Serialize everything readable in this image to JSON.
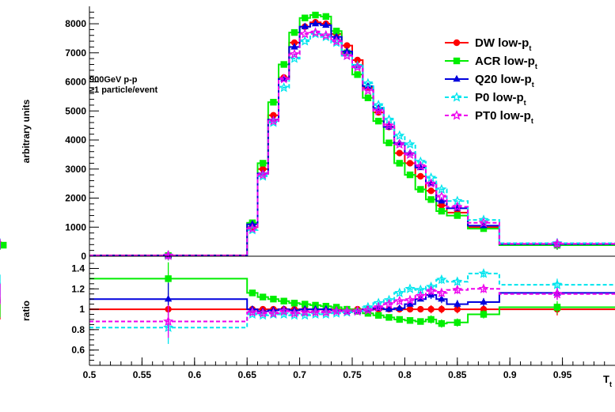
{
  "chart_data": {
    "type": "line",
    "upper": {
      "ylabel": "arbitrary units",
      "ylim": [
        0,
        8600
      ],
      "yticks": [
        0,
        1000,
        2000,
        3000,
        4000,
        5000,
        6000,
        7000,
        8000
      ],
      "annotation": [
        "900GeV p-p",
        "≥1 particle/event"
      ],
      "bin_edges": [
        0.5,
        0.65,
        0.66,
        0.67,
        0.68,
        0.69,
        0.7,
        0.71,
        0.72,
        0.73,
        0.74,
        0.75,
        0.76,
        0.77,
        0.78,
        0.79,
        0.8,
        0.81,
        0.82,
        0.83,
        0.84,
        0.86,
        0.89,
        1.0
      ],
      "series": [
        {
          "name": "DW low-p",
          "sub": "t",
          "color": "#ff0000",
          "marker": "circle",
          "dash": "",
          "values": [
            30,
            1000,
            3000,
            4850,
            6150,
            7350,
            7900,
            8050,
            8000,
            7650,
            7250,
            6750,
            5800,
            4950,
            4450,
            3550,
            3200,
            2750,
            2250,
            1750,
            1500,
            1000,
            400,
            400
          ]
        },
        {
          "name": "ACR low-p",
          "sub": "t",
          "color": "#00ee00",
          "marker": "square",
          "dash": "",
          "values": [
            20,
            1150,
            3200,
            5300,
            6600,
            7700,
            8200,
            8300,
            8250,
            7750,
            7000,
            6250,
            5450,
            4650,
            3900,
            3200,
            2800,
            2300,
            1950,
            1550,
            1400,
            950,
            380,
            380
          ]
        },
        {
          "name": "Q20 low-p",
          "sub": "t",
          "color": "#0000dd",
          "marker": "triangle",
          "dash": "",
          "values": [
            25,
            1100,
            2850,
            4700,
            6100,
            7200,
            7900,
            8000,
            7950,
            7550,
            7050,
            6550,
            5850,
            5100,
            4450,
            3900,
            3550,
            3050,
            2500,
            1900,
            1650,
            1050,
            420,
            420
          ]
        },
        {
          "name": "P0 low-p",
          "sub": "t",
          "color": "#00e5ee",
          "marker": "openstar",
          "dash": "5,3",
          "values": [
            25,
            900,
            2750,
            4600,
            5800,
            6800,
            7400,
            7650,
            7550,
            7350,
            6900,
            6550,
            5950,
            5200,
            4700,
            4150,
            3850,
            3250,
            2700,
            2300,
            1900,
            1250,
            450,
            450
          ]
        },
        {
          "name": "PT0 low-p",
          "sub": "t",
          "color": "#ee00ee",
          "marker": "openstar",
          "dash": "5,3",
          "values": [
            25,
            950,
            2800,
            4650,
            6100,
            6950,
            7650,
            7700,
            7600,
            7400,
            6900,
            6500,
            5700,
            5000,
            4500,
            3850,
            3500,
            3100,
            2500,
            2050,
            1700,
            1150,
            430,
            430
          ]
        }
      ]
    },
    "ratio": {
      "ylabel": "ratio",
      "xlabel": "T",
      "xlabel_sub": "t",
      "xlim": [
        0.5,
        1.0
      ],
      "xticks": [
        0.5,
        0.55,
        0.6,
        0.65,
        0.7,
        0.75,
        0.8,
        0.85,
        0.9,
        0.95
      ],
      "ylim": [
        0.45,
        1.52
      ],
      "yticks": [
        0.6,
        0.8,
        1,
        1.2,
        1.4
      ],
      "series": [
        {
          "name": "DW low-p",
          "values": [
            1,
            1,
            1,
            1,
            1,
            1,
            1,
            1,
            1,
            1,
            1,
            1,
            1,
            1,
            1,
            1,
            1,
            1,
            1,
            1,
            1,
            1,
            1,
            1
          ]
        },
        {
          "name": "ACR low-p",
          "values": [
            1.3,
            1.16,
            1.12,
            1.1,
            1.08,
            1.06,
            1.05,
            1.04,
            1.03,
            1.02,
            1.0,
            0.98,
            0.96,
            0.94,
            0.92,
            0.9,
            0.89,
            0.88,
            0.9,
            0.86,
            0.87,
            0.95,
            1.02,
            1.02
          ]
        },
        {
          "name": "Q20 low-p",
          "values": [
            1.1,
            1.0,
            0.98,
            0.99,
            1.0,
            0.99,
            1.0,
            1.0,
            1.0,
            0.99,
            0.98,
            0.98,
            1.0,
            1.01,
            1.0,
            1.01,
            1.05,
            1.1,
            1.14,
            1.1,
            1.05,
            1.07,
            1.16,
            1.16
          ]
        },
        {
          "name": "P0 low-p",
          "values": [
            0.82,
            0.95,
            0.94,
            0.95,
            0.95,
            0.94,
            0.94,
            0.95,
            0.95,
            0.96,
            0.97,
            0.98,
            1.02,
            1.06,
            1.09,
            1.16,
            1.2,
            1.19,
            1.22,
            1.29,
            1.27,
            1.35,
            1.24,
            1.24
          ]
        },
        {
          "name": "PT0 low-p",
          "values": [
            0.88,
            0.97,
            0.96,
            0.96,
            0.98,
            0.96,
            0.97,
            0.97,
            0.97,
            0.98,
            0.98,
            0.98,
            0.99,
            1.02,
            1.05,
            1.08,
            1.09,
            1.13,
            1.18,
            1.16,
            1.19,
            1.2,
            1.15,
            1.15
          ]
        }
      ]
    }
  }
}
